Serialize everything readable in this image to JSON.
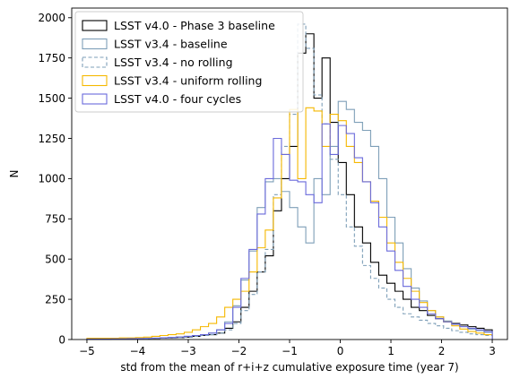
{
  "chart_data": {
    "type": "histogram",
    "xlabel": "std from the mean of r+i+z cumulative exposure time (year 7)",
    "ylabel": "N",
    "xlim": [
      -5.3,
      3.3
    ],
    "ylim": [
      0,
      2060
    ],
    "xticks": [
      -5,
      -4,
      -3,
      -2,
      -1,
      0,
      1,
      2,
      3
    ],
    "yticks": [
      0,
      250,
      500,
      750,
      1000,
      1250,
      1500,
      1750,
      2000
    ],
    "grid": false,
    "legend_position": "top-left",
    "bin_edges": [
      -5.0,
      -4.84,
      -4.68,
      -4.52,
      -4.36,
      -4.2,
      -4.04,
      -3.88,
      -3.72,
      -3.56,
      -3.4,
      -3.24,
      -3.08,
      -2.92,
      -2.76,
      -2.6,
      -2.44,
      -2.28,
      -2.12,
      -1.96,
      -1.8,
      -1.64,
      -1.48,
      -1.32,
      -1.16,
      -1.0,
      -0.84,
      -0.68,
      -0.52,
      -0.36,
      -0.2,
      -0.04,
      0.12,
      0.28,
      0.44,
      0.6,
      0.76,
      0.92,
      1.08,
      1.24,
      1.4,
      1.56,
      1.72,
      1.88,
      2.04,
      2.2,
      2.36,
      2.52,
      2.68,
      2.84,
      3.0
    ],
    "series": [
      {
        "name": "LSST v4.0 - Phase 3 baseline",
        "color": "#000000",
        "dash": "solid",
        "values": [
          2,
          2,
          2,
          3,
          3,
          4,
          5,
          5,
          7,
          9,
          10,
          12,
          15,
          20,
          25,
          30,
          40,
          70,
          110,
          200,
          300,
          420,
          520,
          800,
          1000,
          1200,
          1780,
          1900,
          1500,
          1750,
          1350,
          1100,
          900,
          700,
          600,
          480,
          400,
          350,
          300,
          250,
          200,
          180,
          150,
          130,
          110,
          100,
          90,
          80,
          70,
          60
        ]
      },
      {
        "name": "LSST v3.4 - baseline",
        "color": "#7e9fb8",
        "dash": "solid",
        "values": [
          3,
          3,
          3,
          4,
          4,
          5,
          6,
          7,
          9,
          11,
          13,
          16,
          20,
          25,
          30,
          40,
          60,
          110,
          210,
          370,
          550,
          820,
          980,
          1000,
          920,
          820,
          700,
          600,
          1000,
          900,
          1200,
          1480,
          1430,
          1350,
          1300,
          1200,
          1000,
          760,
          600,
          440,
          320,
          240,
          180,
          140,
          115,
          95,
          80,
          65,
          55,
          45
        ]
      },
      {
        "name": "LSST v3.4 - no rolling",
        "color": "#7e9fb8",
        "dash": "dashed",
        "values": [
          2,
          2,
          2,
          3,
          3,
          4,
          5,
          5,
          7,
          9,
          10,
          12,
          15,
          20,
          25,
          30,
          40,
          60,
          100,
          180,
          280,
          420,
          560,
          900,
          1200,
          1400,
          1960,
          1810,
          1520,
          1340,
          1120,
          900,
          700,
          580,
          460,
          380,
          320,
          250,
          200,
          160,
          140,
          120,
          100,
          85,
          70,
          55,
          45,
          35,
          30,
          25
        ]
      },
      {
        "name": "LSST v3.4 - uniform rolling",
        "color": "#f5b800",
        "dash": "solid",
        "values": [
          8,
          8,
          8,
          8,
          10,
          10,
          12,
          15,
          20,
          25,
          30,
          35,
          45,
          60,
          80,
          100,
          140,
          200,
          250,
          300,
          420,
          570,
          680,
          880,
          1150,
          1430,
          1000,
          1440,
          1420,
          1200,
          1400,
          1360,
          1200,
          1100,
          980,
          860,
          760,
          600,
          480,
          380,
          300,
          230,
          180,
          140,
          110,
          85,
          65,
          50,
          40,
          30
        ]
      },
      {
        "name": "LSST v4.0 - four cycles",
        "color": "#6a6adb",
        "dash": "solid",
        "values": [
          3,
          3,
          3,
          4,
          4,
          5,
          6,
          7,
          9,
          11,
          13,
          16,
          20,
          25,
          30,
          40,
          60,
          100,
          200,
          380,
          560,
          780,
          1000,
          1250,
          1150,
          990,
          980,
          900,
          850,
          1340,
          1150,
          1330,
          1280,
          1130,
          980,
          850,
          700,
          550,
          430,
          330,
          250,
          200,
          160,
          130,
          110,
          95,
          80,
          70,
          60,
          50
        ]
      }
    ]
  }
}
